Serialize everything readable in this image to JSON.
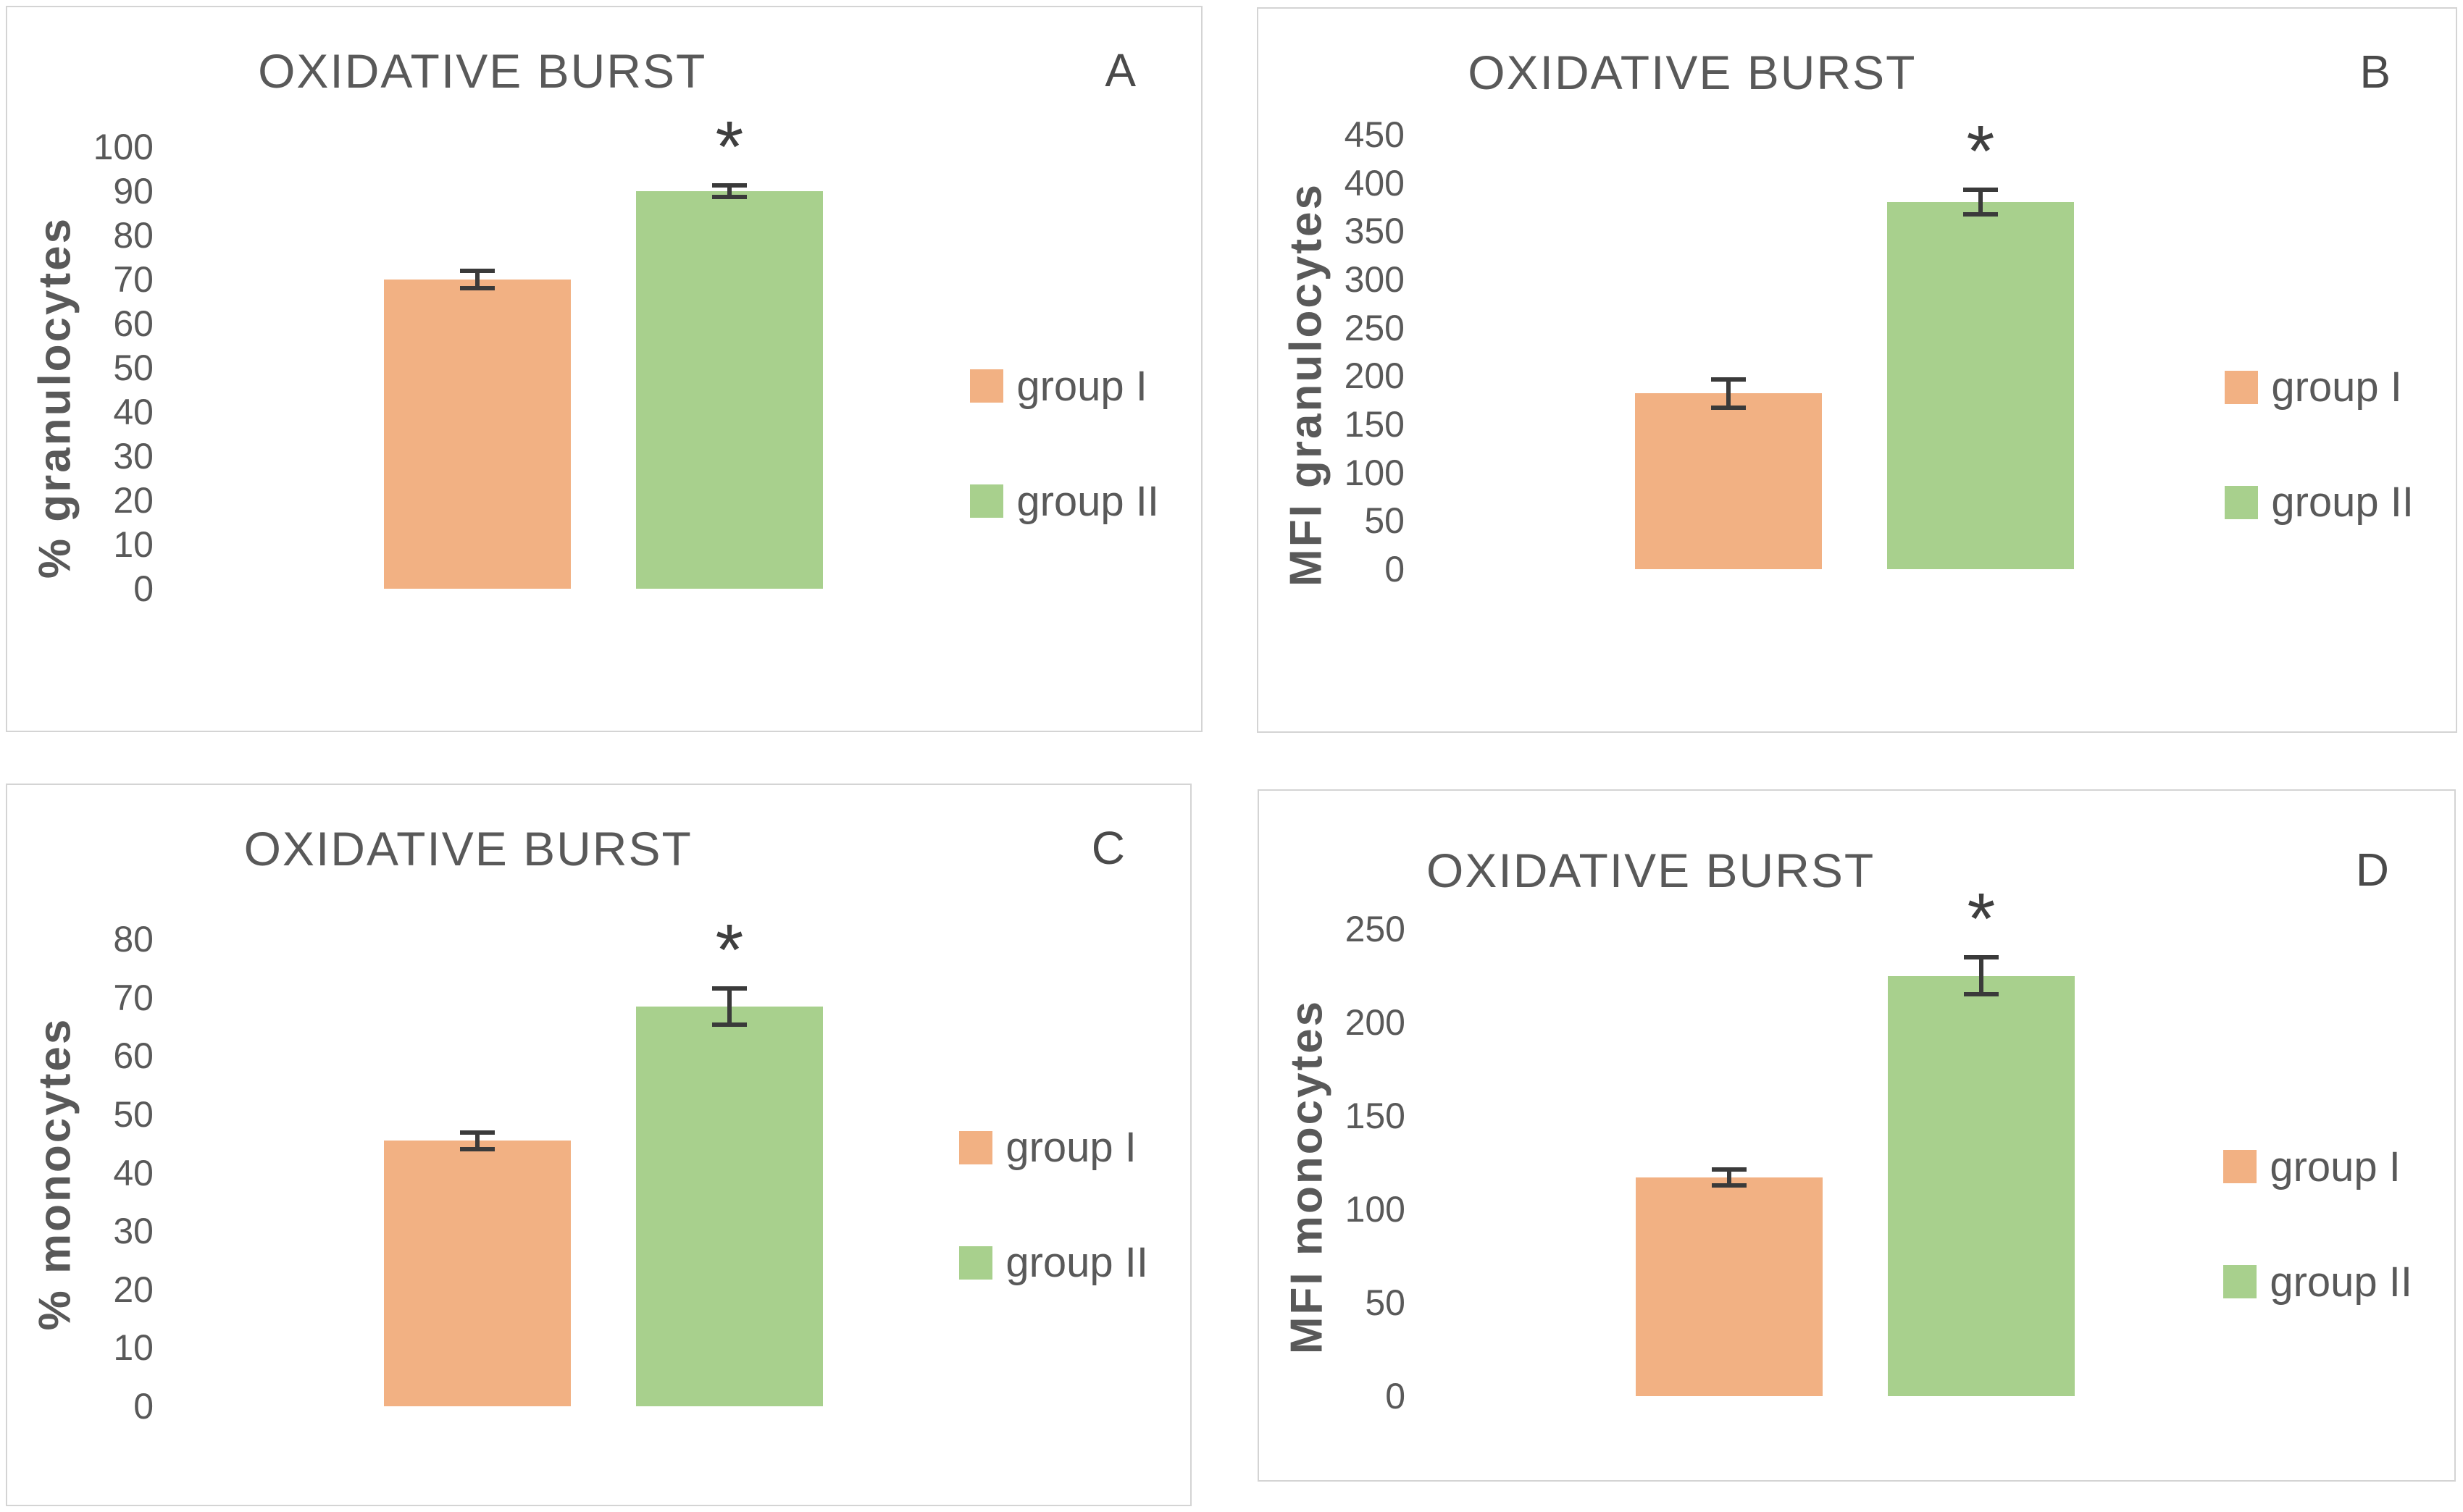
{
  "figure": {
    "background": "#ffffff",
    "panel_border_color": "#d4d4d4",
    "text_color": "#595959",
    "accent_orange": "#F2B183",
    "accent_green": "#A8D08D",
    "error_bar_color": "#3a3a3a"
  },
  "chart_data": [
    {
      "type": "bar",
      "panel_letter": "A",
      "title": "OXIDATIVE BURST",
      "xlabel": "",
      "ylabel": "% granulocytes",
      "ylim": [
        0,
        100
      ],
      "ytick_step": 10,
      "grid": false,
      "error_bars": true,
      "significance_marker": "*",
      "legend_position": "right",
      "categories": [
        "group I",
        "group II"
      ],
      "series": [
        {
          "key": "group-i",
          "name": "group I",
          "value": 70,
          "error": 2.5,
          "color": "#F2B183",
          "significant": false
        },
        {
          "key": "group-ii",
          "name": "group II",
          "value": 90,
          "error": 1.8,
          "color": "#A8D08D",
          "significant": true
        }
      ],
      "legend": [
        {
          "label": "group I",
          "color": "#F2B183"
        },
        {
          "label": "group II",
          "color": "#A8D08D"
        }
      ]
    },
    {
      "type": "bar",
      "panel_letter": "B",
      "title": "OXIDATIVE BURST",
      "xlabel": "",
      "ylabel": "MFI granulocytes",
      "ylim": [
        0,
        450
      ],
      "ytick_step": 50,
      "grid": false,
      "error_bars": true,
      "significance_marker": "*",
      "legend_position": "right",
      "categories": [
        "group I",
        "group II"
      ],
      "series": [
        {
          "key": "group-i",
          "name": "group I",
          "value": 182,
          "error": 17,
          "color": "#F2B183",
          "significant": false
        },
        {
          "key": "group-ii",
          "name": "group II",
          "value": 380,
          "error": 15,
          "color": "#A8D08D",
          "significant": true
        }
      ],
      "legend": [
        {
          "label": "group I",
          "color": "#F2B183"
        },
        {
          "label": "group II",
          "color": "#A8D08D"
        }
      ]
    },
    {
      "type": "bar",
      "panel_letter": "C",
      "title": "OXIDATIVE BURST",
      "xlabel": "",
      "ylabel": "% monocytes",
      "ylim": [
        0,
        80
      ],
      "ytick_step": 10,
      "grid": false,
      "error_bars": true,
      "significance_marker": "*",
      "legend_position": "right",
      "categories": [
        "group I",
        "group II"
      ],
      "series": [
        {
          "key": "group-i",
          "name": "group I",
          "value": 45.5,
          "error": 1.8,
          "color": "#F2B183",
          "significant": false
        },
        {
          "key": "group-ii",
          "name": "group II",
          "value": 68.5,
          "error": 3.5,
          "color": "#A8D08D",
          "significant": true
        }
      ],
      "legend": [
        {
          "label": "group I",
          "color": "#F2B183"
        },
        {
          "label": "group II",
          "color": "#A8D08D"
        }
      ]
    },
    {
      "type": "bar",
      "panel_letter": "D",
      "title": "OXIDATIVE BURST",
      "xlabel": "",
      "ylabel": "MFI monocytes",
      "ylim": [
        0,
        250
      ],
      "ytick_step": 50,
      "grid": false,
      "error_bars": true,
      "significance_marker": "*",
      "legend_position": "right",
      "categories": [
        "group I",
        "group II"
      ],
      "series": [
        {
          "key": "group-i",
          "name": "group I",
          "value": 117,
          "error": 5.5,
          "color": "#F2B183",
          "significant": false
        },
        {
          "key": "group-ii",
          "name": "group II",
          "value": 225,
          "error": 11,
          "color": "#A8D08D",
          "significant": true
        }
      ],
      "legend": [
        {
          "label": "group I",
          "color": "#F2B183"
        },
        {
          "label": "group II",
          "color": "#A8D08D"
        }
      ]
    }
  ]
}
